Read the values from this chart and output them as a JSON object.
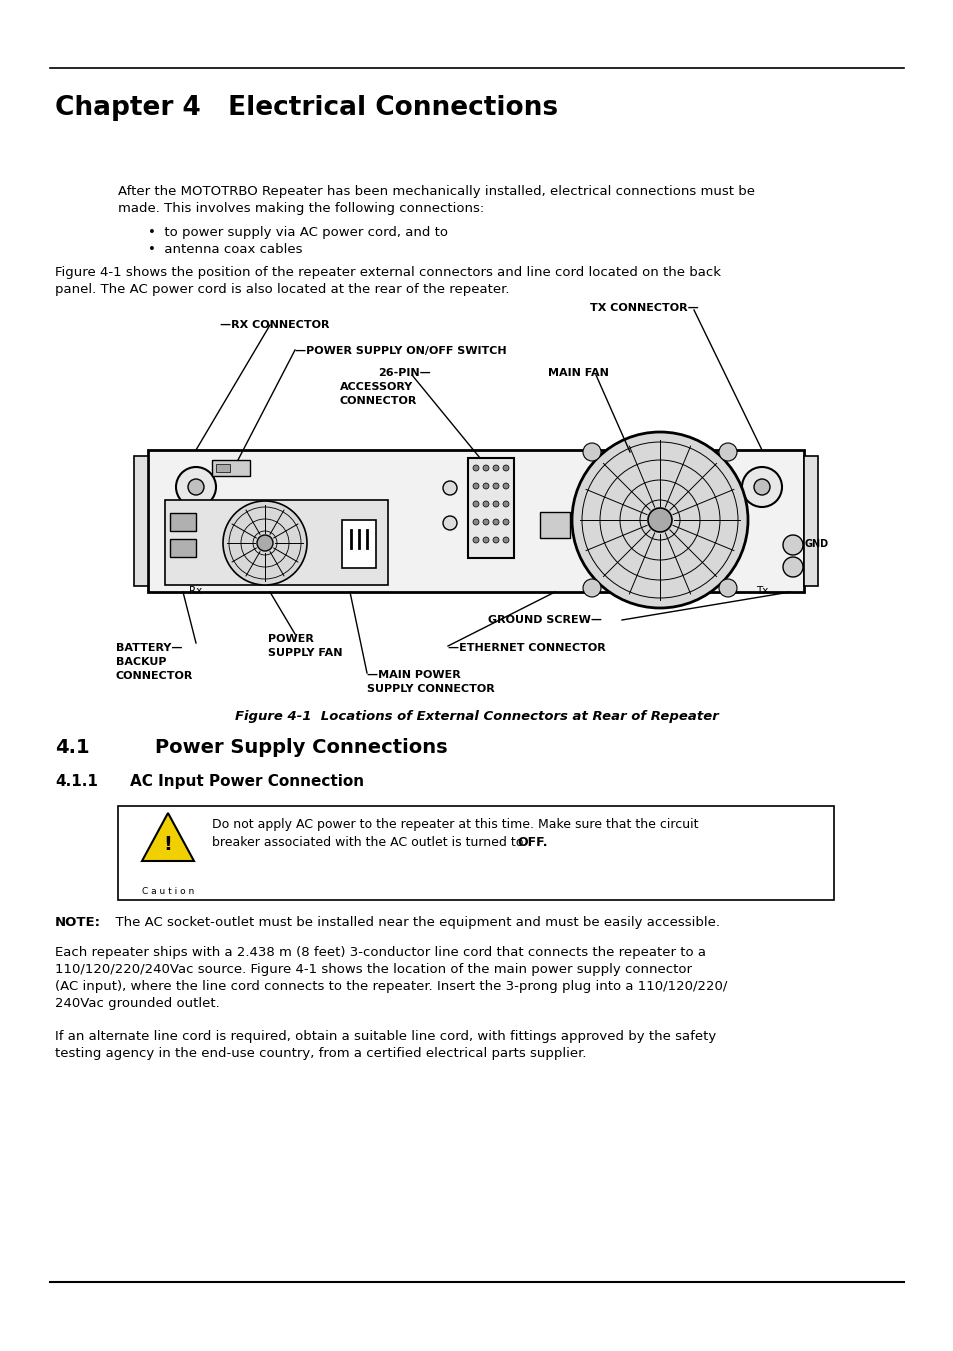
{
  "bg_color": "#ffffff",
  "chapter_title": "Chapter 4   Electrical Connections",
  "intro_text1": "After the MOTOTRBO Repeater has been mechanically installed, electrical connections must be",
  "intro_text2": "made. This involves making the following connections:",
  "bullet1": "•  to power supply via AC power cord, and to",
  "bullet2": "•  antenna coax cables",
  "fig_intro1": "Figure 4-1 shows the position of the repeater external connectors and line cord located on the back",
  "fig_intro2": "panel. The AC power cord is also located at the rear of the repeater.",
  "fig_caption": "Figure 4-1  Locations of External Connectors at Rear of Repeater",
  "section_41_num": "4.1",
  "section_41_txt": "Power Supply Connections",
  "section_411_num": "4.1.1",
  "section_411_txt": "AC Input Power Connection",
  "caution_line1": "Do not apply AC power to the repeater at this time. Make sure that the circuit",
  "caution_line2_pre": "breaker associated with the AC outlet is turned to ",
  "caution_line2_bold": "OFF.",
  "caution_label": "C a u t i o n",
  "note_bold": "NOTE:",
  "note_rest": "  The AC socket-outlet must be installed near the equipment and must be easily accessible.",
  "para1_l1": "Each repeater ships with a 2.438 m (8 feet) 3-conductor line cord that connects the repeater to a",
  "para1_l2": "110/120/220/240Vac source. Figure 4-1 shows the location of the main power supply connector",
  "para1_l3": "(AC input), where the line cord connects to the repeater. Insert the 3-prong plug into a 110/120/220/",
  "para1_l4": "240Vac grounded outlet.",
  "para2_l1": "If an alternate line cord is required, obtain a suitable line cord, with fittings approved by the safety",
  "para2_l2": "testing agency in the end-use country, from a certified electrical parts supplier."
}
